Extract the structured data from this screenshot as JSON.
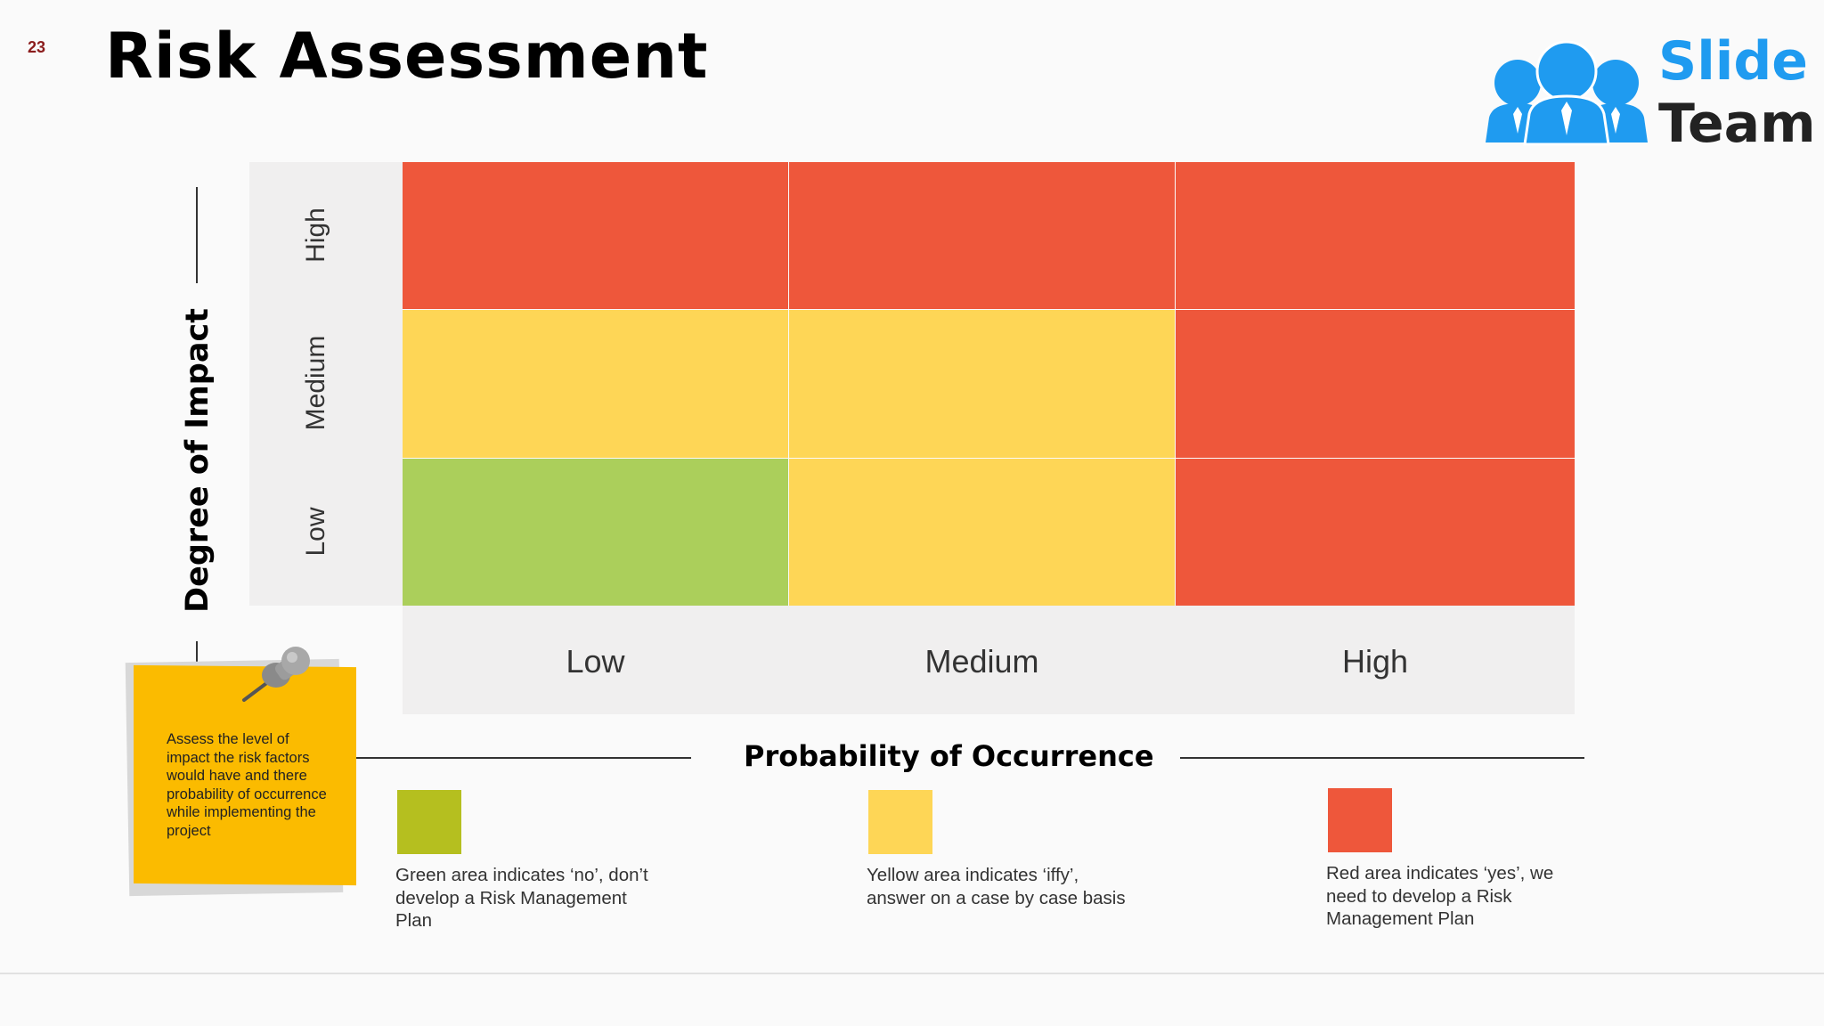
{
  "slide": {
    "number": "23",
    "title": "Risk Assessment"
  },
  "logo": {
    "line1": "Slide",
    "line2": "Team"
  },
  "matrix": {
    "y_axis_title": "Degree of Impact",
    "x_axis_title": "Probability of Occurrence",
    "row_labels": [
      "High",
      "Medium",
      "Low"
    ],
    "col_labels": [
      "Low",
      "Medium",
      "High"
    ],
    "cells": [
      [
        "red",
        "red",
        "red"
      ],
      [
        "yellow",
        "yellow",
        "red"
      ],
      [
        "green",
        "yellow",
        "red"
      ]
    ],
    "colors": {
      "red": "#ee573b",
      "yellow": "#fed656",
      "green": "#abcf5b"
    }
  },
  "note": {
    "text": "Assess the level of impact the risk factors would have and there probability of occurrence while implementing the project"
  },
  "legend": [
    {
      "color": "#b5bf1f",
      "text": "Green area indicates ‘no’, don’t develop a Risk Management Plan"
    },
    {
      "color": "#fed656",
      "text": "Yellow area indicates ‘iffy’, answer on a case by case basis"
    },
    {
      "color": "#ee573b",
      "text": "Red area indicates ‘yes’, we need to develop a Risk Management Plan"
    }
  ]
}
